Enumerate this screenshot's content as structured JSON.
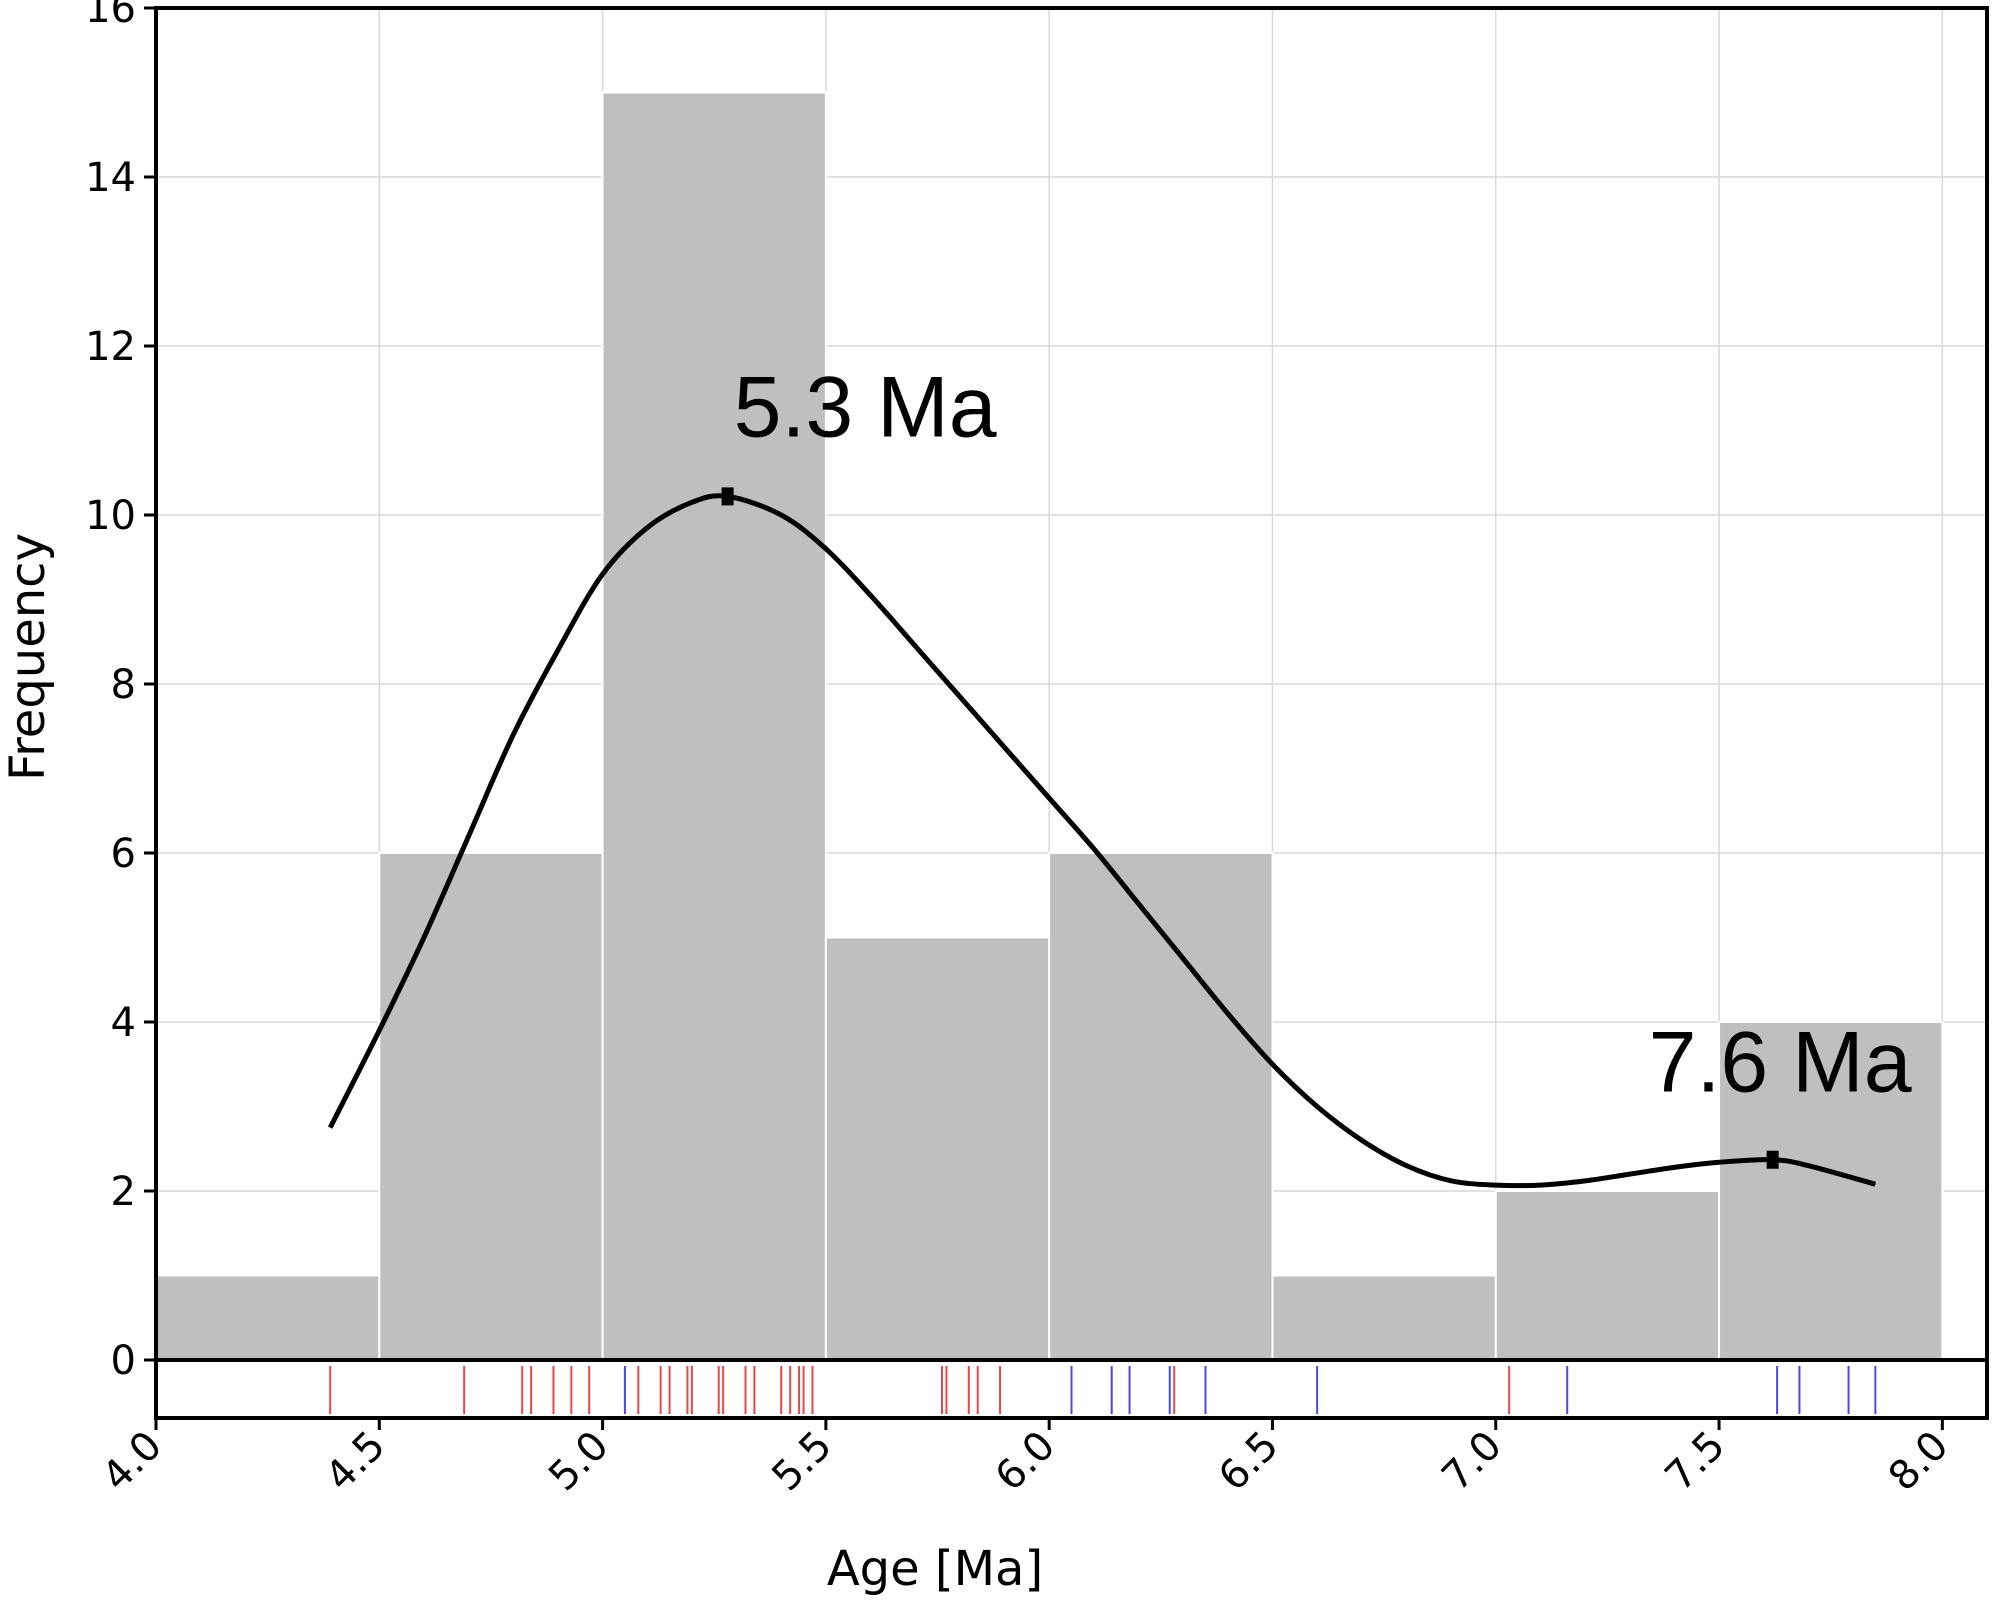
{
  "chart_data": {
    "type": "bar",
    "title": "",
    "xlabel": "Age [Ma]",
    "ylabel": "Frequency",
    "xlim": [
      4.0,
      8.1
    ],
    "ylim": [
      0,
      16
    ],
    "grid": true,
    "x_ticks": [
      "4.0",
      "4.5",
      "5.0",
      "5.5",
      "6.0",
      "6.5",
      "7.0",
      "7.5",
      "8.0"
    ],
    "y_ticks": [
      "0",
      "2",
      "4",
      "6",
      "8",
      "10",
      "12",
      "14",
      "16"
    ],
    "colors": {
      "bars": "#bfbfbf",
      "curve": "#000000",
      "rug_a": "#e8484a",
      "rug_b": "#4a4ae8"
    },
    "histogram": {
      "bin_edges": [
        4.0,
        4.5,
        5.0,
        5.5,
        6.0,
        6.5,
        7.0,
        7.5,
        8.0
      ],
      "counts": [
        1,
        6,
        15,
        5,
        6,
        1,
        2,
        4
      ]
    },
    "density_curve": {
      "x": [
        4.39,
        4.5,
        4.6,
        4.7,
        4.8,
        4.9,
        5.0,
        5.1,
        5.2,
        5.28,
        5.4,
        5.5,
        5.6,
        5.7,
        5.8,
        5.9,
        6.0,
        6.1,
        6.2,
        6.3,
        6.4,
        6.5,
        6.6,
        6.7,
        6.8,
        6.9,
        7.0,
        7.1,
        7.2,
        7.3,
        7.4,
        7.5,
        7.62,
        7.7,
        7.85
      ],
      "y": [
        2.75,
        3.9,
        5.0,
        6.2,
        7.4,
        8.4,
        9.3,
        9.85,
        10.15,
        10.22,
        10.0,
        9.6,
        9.05,
        8.45,
        7.85,
        7.25,
        6.65,
        6.05,
        5.4,
        4.75,
        4.1,
        3.5,
        3.0,
        2.6,
        2.3,
        2.12,
        2.07,
        2.07,
        2.12,
        2.2,
        2.28,
        2.34,
        2.37,
        2.3,
        2.08
      ]
    },
    "peaks": [
      {
        "x": 5.28,
        "y": 10.22,
        "label": "5.3 Ma"
      },
      {
        "x": 7.62,
        "y": 2.37,
        "label": "7.6 Ma"
      }
    ],
    "rug": {
      "red": [
        4.39,
        4.69,
        4.82,
        4.84,
        4.89,
        4.93,
        4.97,
        5.08,
        5.13,
        5.15,
        5.19,
        5.2,
        5.26,
        5.27,
        5.32,
        5.34,
        5.4,
        5.42,
        5.44,
        5.45,
        5.47,
        5.76,
        5.77,
        5.82,
        5.84,
        5.89,
        6.28,
        7.03
      ],
      "blue": [
        5.05,
        6.05,
        6.14,
        6.18,
        6.27,
        6.35,
        6.6,
        7.16,
        7.63,
        7.68,
        7.79,
        7.85
      ]
    }
  }
}
